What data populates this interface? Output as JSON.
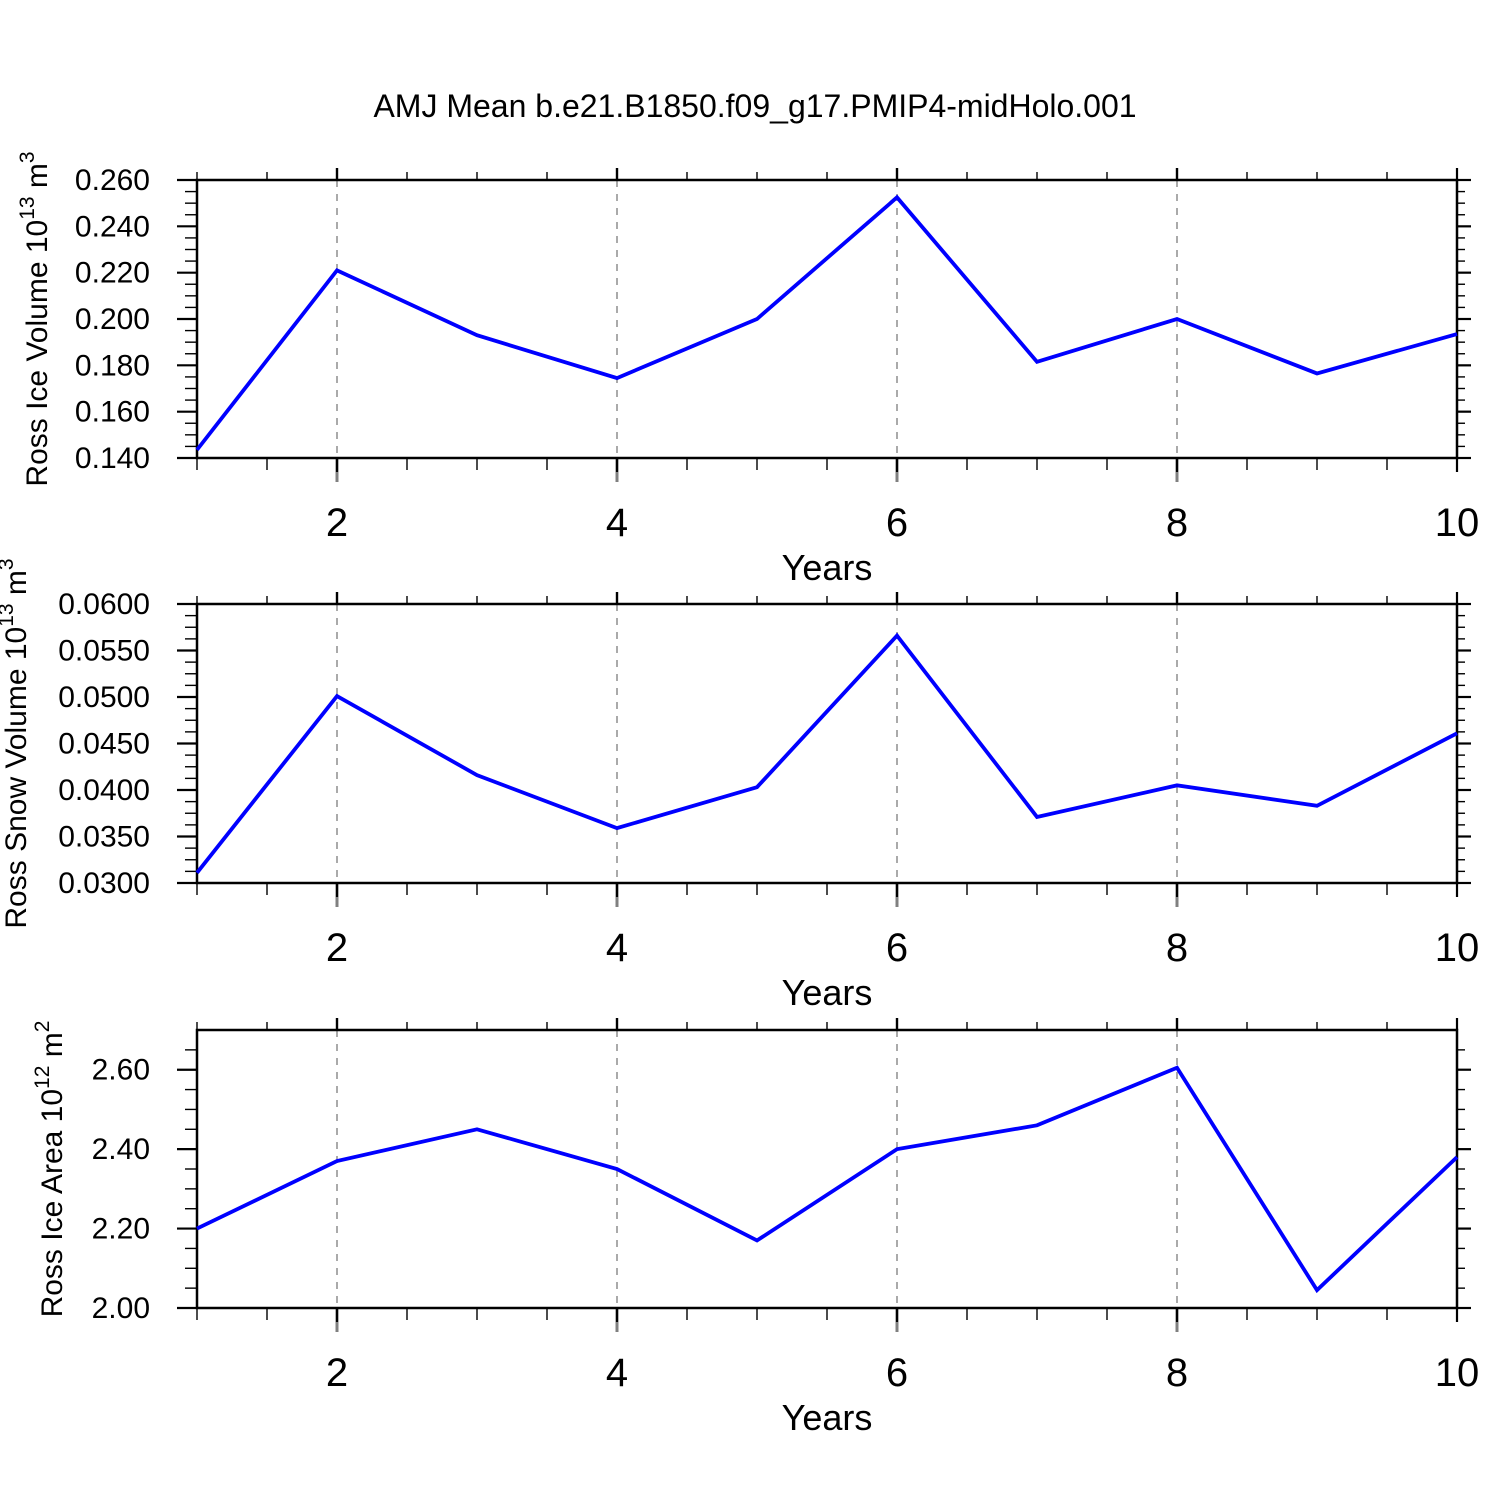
{
  "title": "AMJ Mean b.e21.B1850.f09_g17.PMIP4-midHolo.001",
  "colors": {
    "line": "#0000ff",
    "grid": "#aaaaaa",
    "grid_stub": "#808080",
    "axis": "#000000",
    "background": "#ffffff"
  },
  "chart_data": [
    {
      "type": "line",
      "name": "ross-ice-volume",
      "ylabel_parts": [
        {
          "t": "Ross Ice Volume 10"
        },
        {
          "t": "13",
          "sup": true
        },
        {
          "t": " m"
        },
        {
          "t": "3",
          "sup": true
        }
      ],
      "xlabel": "Years",
      "x": [
        1,
        2,
        3,
        4,
        5,
        6,
        7,
        8,
        9,
        10
      ],
      "values": [
        0.1435,
        0.221,
        0.193,
        0.1745,
        0.2,
        0.2525,
        0.1815,
        0.2,
        0.1765,
        0.1935
      ],
      "ylim": [
        0.14,
        0.26
      ],
      "yticks": [
        0.14,
        0.16,
        0.18,
        0.2,
        0.22,
        0.24,
        0.26
      ],
      "ytick_labels": [
        "0.140",
        "0.160",
        "0.180",
        "0.200",
        "0.220",
        "0.240",
        "0.260"
      ],
      "yminor_step": 0.005,
      "xlim": [
        1,
        10
      ],
      "xticks": [
        2,
        4,
        6,
        8,
        10
      ],
      "xtick_labels": [
        "2",
        "4",
        "6",
        "8",
        "10"
      ],
      "xminor_step": 0.5,
      "grid_x": [
        2,
        4,
        6,
        8
      ],
      "grid_on": true,
      "legend": "none"
    },
    {
      "type": "line",
      "name": "ross-snow-volume",
      "ylabel_parts": [
        {
          "t": "Ross Snow Volume 10"
        },
        {
          "t": "13",
          "sup": true
        },
        {
          "t": " m"
        },
        {
          "t": "3",
          "sup": true
        }
      ],
      "xlabel": "Years",
      "x": [
        1,
        2,
        3,
        4,
        5,
        6,
        7,
        8,
        9,
        10
      ],
      "values": [
        0.0311,
        0.0501,
        0.0416,
        0.0359,
        0.0403,
        0.0566,
        0.0371,
        0.0405,
        0.0383,
        0.0461
      ],
      "ylim": [
        0.03,
        0.06
      ],
      "yticks": [
        0.03,
        0.035,
        0.04,
        0.045,
        0.05,
        0.055,
        0.06
      ],
      "ytick_labels": [
        "0.0300",
        "0.0350",
        "0.0400",
        "0.0450",
        "0.0500",
        "0.0550",
        "0.0600"
      ],
      "yminor_step": 0.00125,
      "xlim": [
        1,
        10
      ],
      "xticks": [
        2,
        4,
        6,
        8,
        10
      ],
      "xtick_labels": [
        "2",
        "4",
        "6",
        "8",
        "10"
      ],
      "xminor_step": 0.5,
      "grid_x": [
        2,
        4,
        6,
        8
      ],
      "grid_on": true,
      "legend": "none"
    },
    {
      "type": "line",
      "name": "ross-ice-area",
      "ylabel_parts": [
        {
          "t": "Ross Ice Area 10"
        },
        {
          "t": "12",
          "sup": true
        },
        {
          "t": " m"
        },
        {
          "t": "2",
          "sup": true
        }
      ],
      "xlabel": "Years",
      "x": [
        1,
        2,
        3,
        4,
        5,
        6,
        7,
        8,
        9,
        10
      ],
      "values": [
        2.2,
        2.37,
        2.45,
        2.35,
        2.17,
        2.4,
        2.46,
        2.605,
        2.045,
        2.38
      ],
      "ylim": [
        2.0,
        2.7
      ],
      "yticks": [
        2.0,
        2.2,
        2.4,
        2.6
      ],
      "ytick_labels": [
        "2.00",
        "2.20",
        "2.40",
        "2.60"
      ],
      "yminor_step": 0.05,
      "xlim": [
        1,
        10
      ],
      "xticks": [
        2,
        4,
        6,
        8,
        10
      ],
      "xtick_labels": [
        "2",
        "4",
        "6",
        "8",
        "10"
      ],
      "xminor_step": 0.5,
      "grid_x": [
        2,
        4,
        6,
        8
      ],
      "grid_on": true,
      "legend": "none"
    }
  ]
}
